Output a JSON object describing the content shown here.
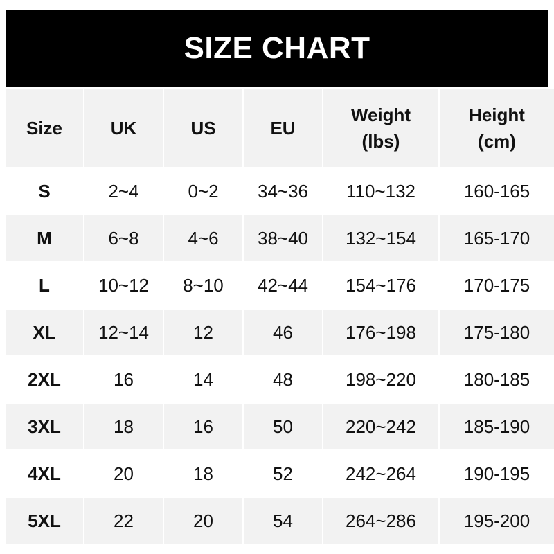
{
  "title": "SIZE CHART",
  "headers": [
    {
      "line1": "Size",
      "line2": ""
    },
    {
      "line1": "UK",
      "line2": ""
    },
    {
      "line1": "US",
      "line2": ""
    },
    {
      "line1": "EU",
      "line2": ""
    },
    {
      "line1": "Weight",
      "line2": "(lbs)"
    },
    {
      "line1": "Height",
      "line2": "(cm)"
    }
  ],
  "rows": [
    [
      "S",
      "2~4",
      "0~2",
      "34~36",
      "110~132",
      "160-165"
    ],
    [
      "M",
      "6~8",
      "4~6",
      "38~40",
      "132~154",
      "165-170"
    ],
    [
      "L",
      "10~12",
      "8~10",
      "42~44",
      "154~176",
      "170-175"
    ],
    [
      "XL",
      "12~14",
      "12",
      "46",
      "176~198",
      "175-180"
    ],
    [
      "2XL",
      "16",
      "14",
      "48",
      "198~220",
      "180-185"
    ],
    [
      "3XL",
      "18",
      "16",
      "50",
      "220~242",
      "185-190"
    ],
    [
      "4XL",
      "20",
      "18",
      "52",
      "242~264",
      "190-195"
    ],
    [
      "5XL",
      "22",
      "20",
      "54",
      "264~286",
      "195-200"
    ]
  ],
  "colors": {
    "title_bg": "#000000",
    "stripe": "#f2f2f2"
  }
}
